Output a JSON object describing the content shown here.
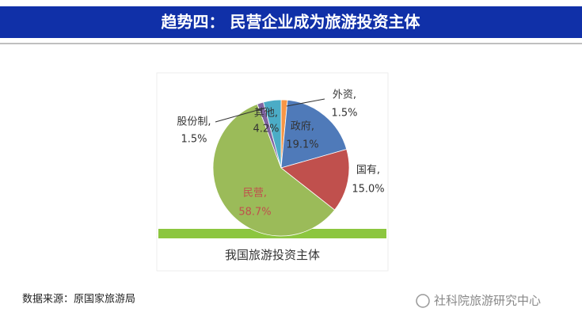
{
  "header": {
    "title": "趋势四： 民营企业成为旅游投资主体"
  },
  "chart_data": {
    "type": "pie",
    "title": "我国旅游投资主体",
    "categories": [
      "外资,",
      "政府,",
      "国有,",
      "民营,",
      "股份制,",
      "其他,"
    ],
    "values": [
      1.5,
      19.1,
      15.0,
      58.7,
      1.5,
      4.2
    ],
    "value_labels": [
      "1.5%",
      "19.1%",
      "15.0%",
      "58.7%",
      "1.5%",
      "4.2%"
    ],
    "colors": [
      "#f79646",
      "#4f7ab9",
      "#c0504d",
      "#9bbb59",
      "#8064a2",
      "#4bacc6"
    ]
  },
  "source": "数据来源：原国家旅游局",
  "watermark": "社科院旅游研究中心"
}
